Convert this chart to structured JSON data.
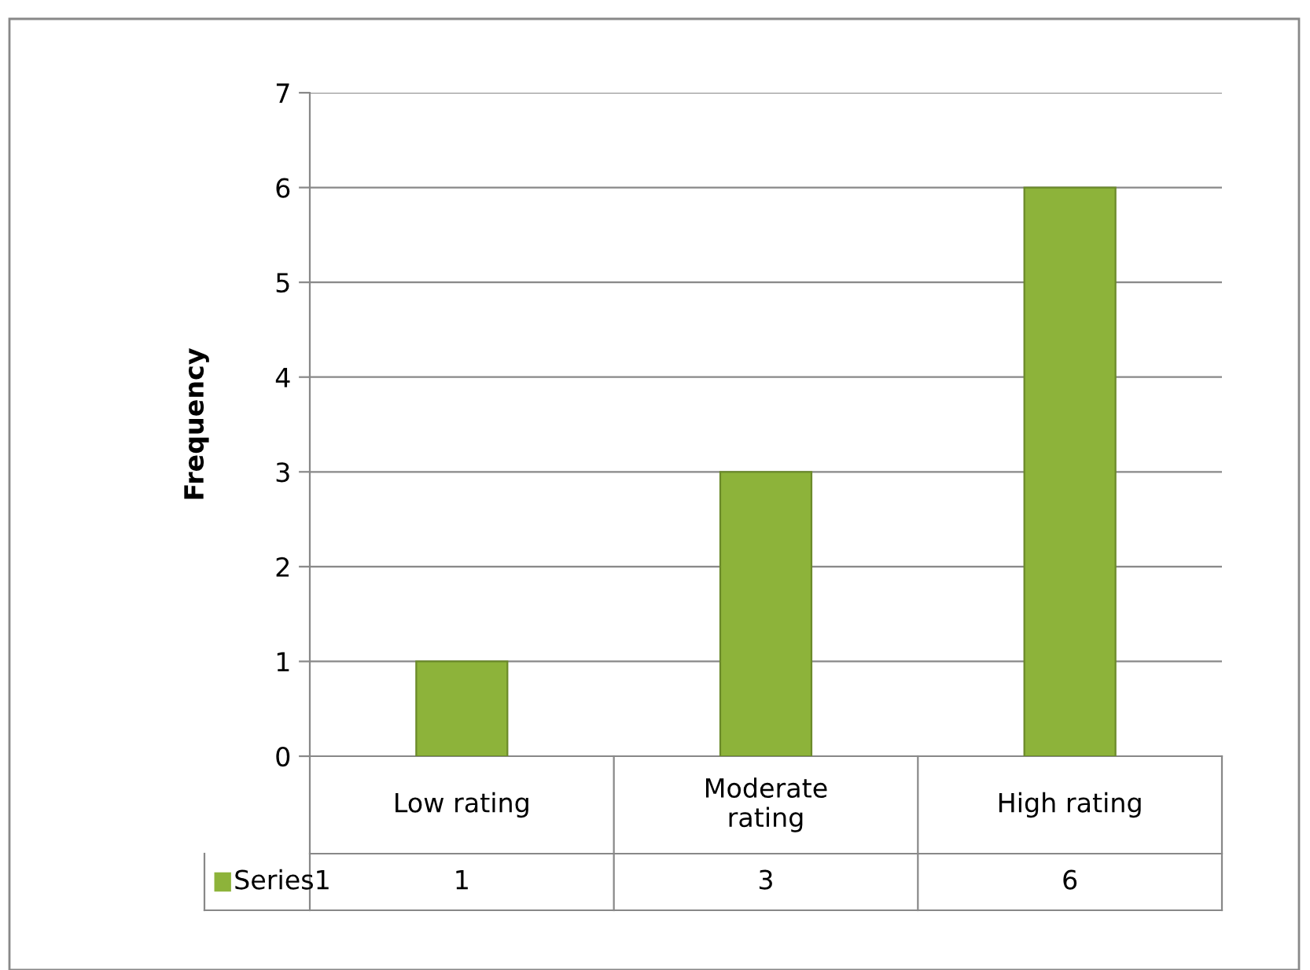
{
  "chart_data": {
    "type": "bar",
    "ylabel": "Frequency",
    "categories": [
      "Low rating",
      "Moderate rating",
      "High rating"
    ],
    "series": [
      {
        "name": "Series1",
        "color": "#8db33a",
        "values": [
          1,
          3,
          6
        ]
      }
    ],
    "ylim": [
      0,
      7
    ],
    "yticks": [
      0,
      1,
      2,
      3,
      4,
      5,
      6,
      7
    ],
    "grid": "y",
    "data_labels": true,
    "legend": "bottom"
  }
}
